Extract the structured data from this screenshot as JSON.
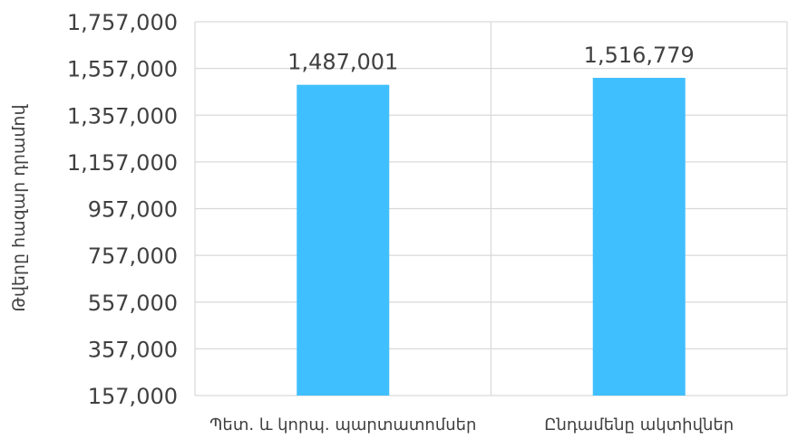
{
  "chart_data": {
    "type": "bar",
    "categories": [
      "Պետ. և կորպ. պարտատոմսեր",
      "Ընդամենը ակտիվներ"
    ],
    "values": [
      1487001,
      1516779
    ],
    "value_labels": [
      "1,487,001",
      "1,516,779"
    ],
    "title": "",
    "xlabel": "",
    "ylabel": "Թվերը հազար դրամով",
    "ylim": [
      157000,
      1757000
    ],
    "yticks": [
      157000,
      357000,
      557000,
      757000,
      957000,
      1157000,
      1357000,
      1557000,
      1757000
    ],
    "ytick_labels": [
      "157,000",
      "357,000",
      "557,000",
      "757,000",
      "957,000",
      "1,157,000",
      "1,357,000",
      "1,557,000",
      "1,757,000"
    ],
    "grid": true,
    "bar_color": "#40BFFF",
    "grid_color": "#D9D9D9",
    "text_color": "#404040"
  }
}
